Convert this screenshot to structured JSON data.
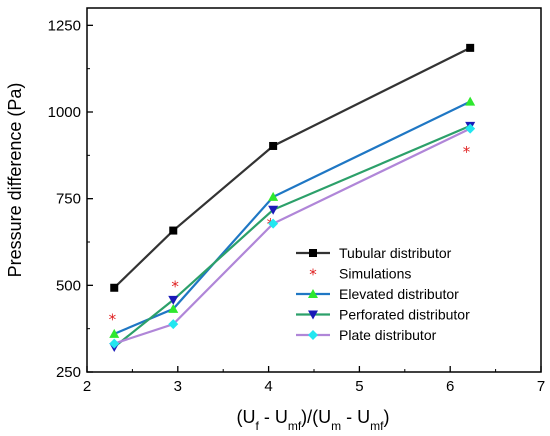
{
  "chart_data": {
    "type": "line",
    "xlabel_parts": [
      "(U",
      "f",
      " - U",
      "mf",
      ")/(U",
      "m",
      " - U",
      "mf",
      ")"
    ],
    "ylabel": "Pressure difference (Pa)",
    "xlim": [
      2,
      7
    ],
    "ylim": [
      250,
      1300
    ],
    "xticks": [
      2,
      3,
      4,
      5,
      6,
      7
    ],
    "yticks": [
      250,
      500,
      750,
      1000,
      1250
    ],
    "grid": false,
    "legend_position": "bottom-right",
    "series": [
      {
        "name": "Tubular distributor",
        "color": "#333333",
        "marker": "square",
        "line": true,
        "x": [
          2.3,
          2.95,
          4.05,
          6.22
        ],
        "y": [
          493,
          658,
          902,
          1185
        ]
      },
      {
        "name": "Simulations",
        "color": "#d62728",
        "marker": "star",
        "line": false,
        "x": [
          2.28,
          2.97,
          4.02,
          6.18
        ],
        "y": [
          405,
          500,
          680,
          888
        ]
      },
      {
        "name": "Elevated distributor",
        "color": "#1f77c4",
        "marker": "triangle-up",
        "line": true,
        "x": [
          2.3,
          2.95,
          4.05,
          6.22
        ],
        "y": [
          360,
          432,
          755,
          1030
        ]
      },
      {
        "name": "Perforated distributor",
        "color": "#2ca06a",
        "marker": "triangle-down",
        "line": true,
        "x": [
          2.3,
          2.95,
          4.05,
          6.22
        ],
        "y": [
          322,
          458,
          718,
          960
        ]
      },
      {
        "name": "Plate distributor",
        "color": "#b086d8",
        "marker": "diamond",
        "line": true,
        "x": [
          2.3,
          2.95,
          4.05,
          6.22
        ],
        "y": [
          332,
          388,
          678,
          952
        ]
      }
    ],
    "marker_colors": {
      "Tubular distributor": "#000000",
      "Simulations": "#e02020",
      "Elevated distributor": "#2ee82e",
      "Perforated distributor": "#1a1ab8",
      "Plate distributor": "#22e6f0"
    }
  }
}
